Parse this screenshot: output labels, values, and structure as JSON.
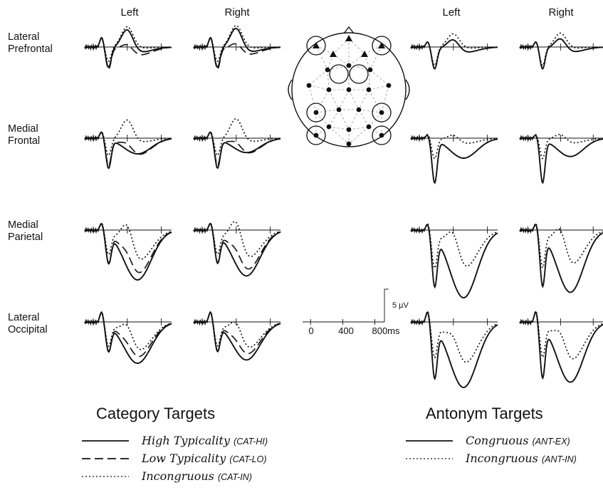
{
  "chart_data": {
    "type": "line",
    "panel_groups": [
      {
        "name": "Category Targets",
        "columns": [
          "Left",
          "Right"
        ]
      },
      {
        "name": "Antonym Targets",
        "columns": [
          "Left",
          "Right"
        ]
      }
    ],
    "regions": [
      "Lateral Prefrontal",
      "Medial Frontal",
      "Medial Parietal",
      "Lateral Occipital"
    ],
    "region_lines": [
      [
        "Lateral",
        "Prefrontal"
      ],
      [
        "Medial",
        "Frontal"
      ],
      [
        "Medial",
        "Parietal"
      ],
      [
        "Lateral",
        "Occipital"
      ]
    ],
    "scale_bar": {
      "x_ticks": [
        "0",
        "400",
        "800ms"
      ],
      "y_label": "5 µV"
    },
    "legend": {
      "category": [
        {
          "name": "High Typicality",
          "code": "(CAT-HI)",
          "style": "solid"
        },
        {
          "name": "Low Typicality",
          "code": "(CAT-LO)",
          "style": "dashed"
        },
        {
          "name": "Incongruous",
          "code": "(CAT-IN)",
          "style": "dotted"
        }
      ],
      "antonym": [
        {
          "name": "Congruous",
          "code": "(ANT-EX)",
          "style": "solid"
        },
        {
          "name": "Incongruous",
          "code": "(ANT-IN)",
          "style": "dotted"
        }
      ]
    },
    "series_styles": {
      "solid": "",
      "dashed": "12 6",
      "dotted": "2 3"
    },
    "x_range_ms": [
      -100,
      920
    ],
    "y_unit": "µV"
  }
}
